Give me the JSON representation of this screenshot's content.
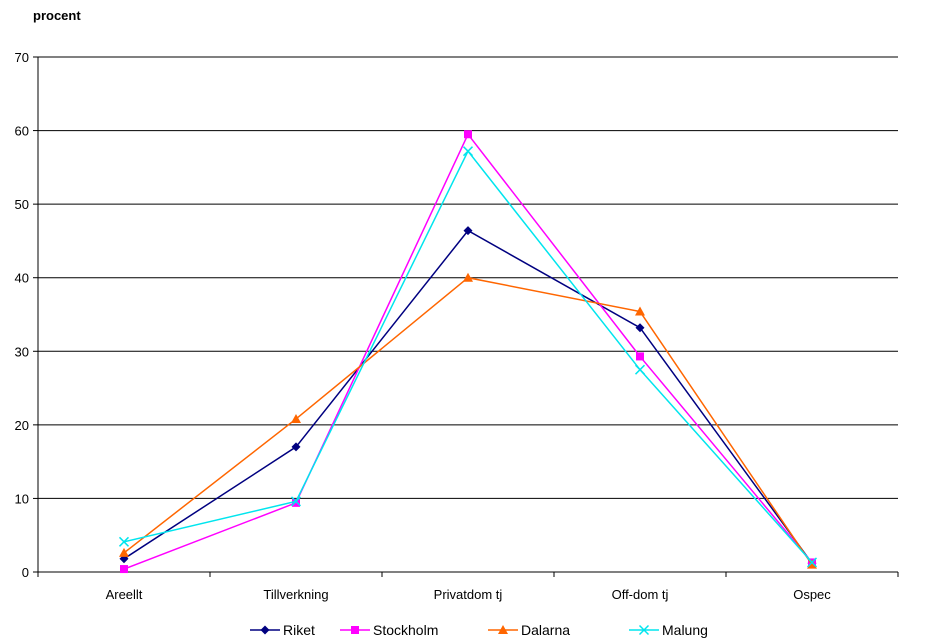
{
  "chart_data": {
    "type": "line",
    "ylabel": "procent",
    "ylim": [
      0,
      70
    ],
    "yticks": [
      0,
      10,
      20,
      30,
      40,
      50,
      60,
      70
    ],
    "grid": true,
    "legend_position": "bottom",
    "categories": [
      "Areellt",
      "Tillverkning",
      "Privatdom tj",
      "Off-dom tj",
      "Ospec"
    ],
    "series": [
      {
        "name": "Riket",
        "color": "#000080",
        "marker": "diamond",
        "values": [
          1.8,
          17.0,
          46.4,
          33.2,
          1.2
        ]
      },
      {
        "name": "Stockholm",
        "color": "#ff00ff",
        "marker": "square",
        "values": [
          0.4,
          9.4,
          59.5,
          29.3,
          1.3
        ]
      },
      {
        "name": "Dalarna",
        "color": "#ff6600",
        "marker": "triangle",
        "values": [
          2.6,
          20.8,
          40.0,
          35.4,
          1.0
        ]
      },
      {
        "name": "Malung",
        "color": "#00e5ee",
        "marker": "x",
        "values": [
          4.1,
          9.6,
          57.2,
          27.5,
          1.3
        ]
      }
    ]
  }
}
